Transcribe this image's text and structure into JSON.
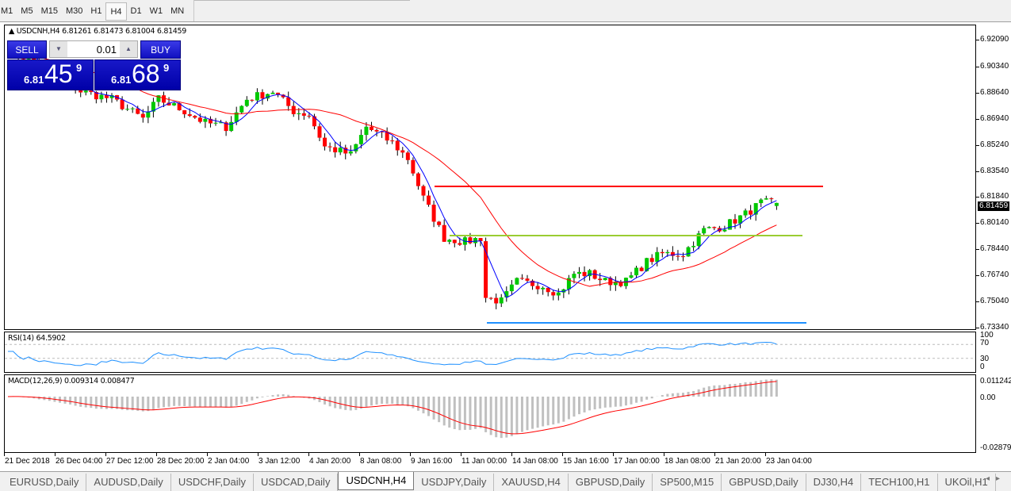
{
  "timeframes": [
    "M1",
    "M5",
    "M15",
    "M30",
    "H1",
    "H4",
    "D1",
    "W1",
    "MN"
  ],
  "active_timeframe": "H4",
  "chart": {
    "header": "USDCNH,H4  6.81261 6.81473 6.81004 6.81459",
    "symbol": "USDCNH",
    "period": "H4",
    "ohlc": {
      "open": 6.81261,
      "high": 6.81473,
      "low": 6.81004,
      "close": 6.81459
    },
    "price_axis": [
      "6.92090",
      "6.90340",
      "6.88640",
      "6.86940",
      "6.85240",
      "6.83540",
      "6.81840",
      "6.80140",
      "6.78440",
      "6.76740",
      "6.75040",
      "6.73340"
    ],
    "current_price": "6.81459",
    "price_range": [
      6.7334,
      6.9209
    ],
    "time_axis": [
      "21 Dec 2018",
      "26 Dec 04:00",
      "27 Dec 12:00",
      "28 Dec 20:00",
      "2 Jan 04:00",
      "3 Jan 12:00",
      "4 Jan 20:00",
      "8 Jan 08:00",
      "9 Jan 16:00",
      "11 Jan 00:00",
      "14 Jan 08:00",
      "15 Jan 16:00",
      "17 Jan 00:00",
      "18 Jan 08:00",
      "21 Jan 20:00",
      "23 Jan 04:00"
    ],
    "close_path": [
      [
        0,
        6.916
      ],
      [
        14,
        6.8873
      ],
      [
        20,
        6.8822
      ],
      [
        26,
        6.8693
      ],
      [
        29,
        6.8822
      ],
      [
        34,
        6.8744
      ],
      [
        38,
        6.8667
      ],
      [
        42,
        6.8641
      ],
      [
        46,
        6.8822
      ],
      [
        51,
        6.8873
      ],
      [
        55,
        6.8744
      ],
      [
        58,
        6.8718
      ],
      [
        61,
        6.8512
      ],
      [
        66,
        6.846
      ],
      [
        69,
        6.8641
      ],
      [
        74,
        6.8538
      ],
      [
        77,
        6.8434
      ],
      [
        80,
        6.8176
      ],
      [
        84,
        6.7918
      ],
      [
        88,
        6.7892
      ],
      [
        91,
        6.7918
      ],
      [
        92,
        6.753
      ],
      [
        95,
        6.7505
      ],
      [
        98,
        6.7634
      ],
      [
        103,
        6.7608
      ],
      [
        106,
        6.7556
      ],
      [
        109,
        6.7685
      ],
      [
        112,
        6.7685
      ],
      [
        115,
        6.7634
      ],
      [
        119,
        6.7634
      ],
      [
        123,
        6.7763
      ],
      [
        126,
        6.7815
      ],
      [
        130,
        6.7815
      ],
      [
        134,
        6.797
      ],
      [
        138,
        6.7995
      ],
      [
        142,
        6.8073
      ],
      [
        145,
        6.8146
      ],
      [
        148,
        6.8146
      ]
    ],
    "levels": [
      {
        "price": 6.82535,
        "color": "#ff0000"
      },
      {
        "price": 6.79333,
        "color": "#9acd32"
      },
      {
        "price": 6.73649,
        "color": "#1e90ff"
      }
    ],
    "colors": {
      "bull": "#00c800",
      "bear": "#ff0000",
      "ma_fast": "#0000ff",
      "ma_slow": "#ff0000"
    }
  },
  "trade": {
    "sell_label": "SELL",
    "buy_label": "BUY",
    "lot": "0.01",
    "sell": {
      "small": "6.81",
      "large": "45",
      "sup": "9"
    },
    "buy": {
      "small": "6.81",
      "large": "68",
      "sup": "9"
    }
  },
  "rsi": {
    "label": "RSI(14) 64.5902",
    "axis": [
      "100",
      "70",
      "30",
      "0"
    ]
  },
  "macd": {
    "label": "MACD(12,26,9) 0.009314 0.008477",
    "axis": [
      "0.011242",
      "0.00",
      "-0.028797"
    ]
  },
  "tabs": [
    "EURUSD,Daily",
    "AUDUSD,Daily",
    "USDCHF,Daily",
    "USDCAD,Daily",
    "USDCNH,H4",
    "USDJPY,Daily",
    "XAUUSD,H4",
    "GBPUSD,Daily",
    "SP500,M15",
    "GBPUSD,Daily",
    "DJ30,H4",
    "TECH100,H1",
    "UKOil,H1"
  ],
  "active_tab": "USDCNH,H4"
}
